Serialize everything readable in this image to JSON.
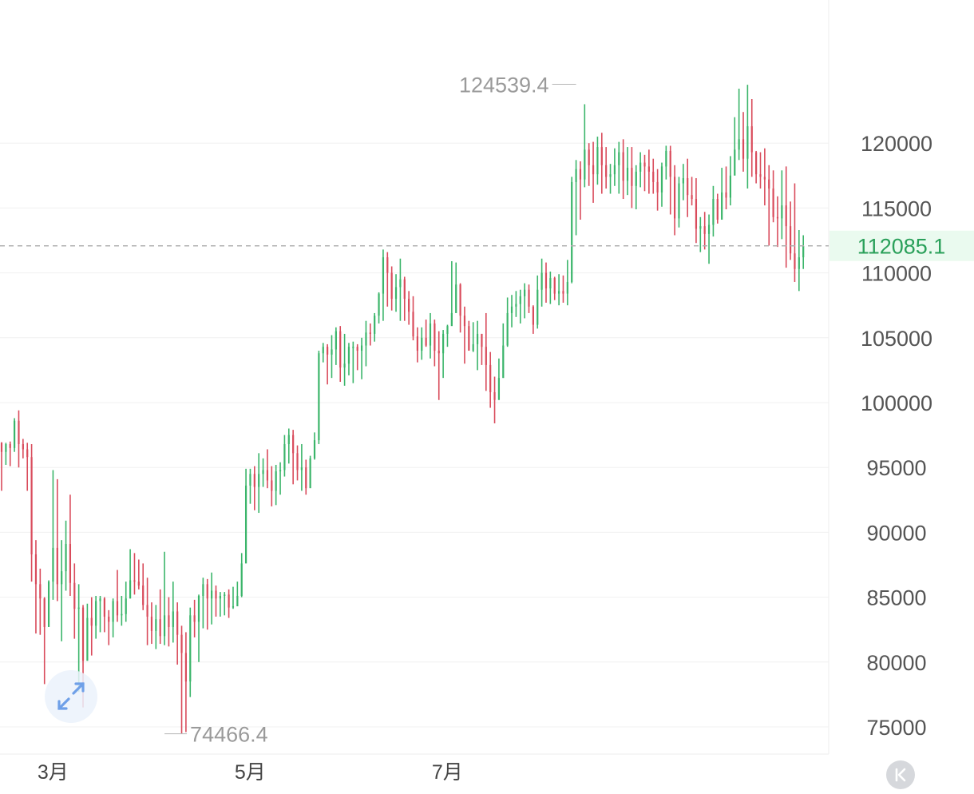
{
  "chart_data": {
    "type": "candlestick",
    "title": "",
    "xlabel": "",
    "ylabel": "",
    "ylim": [
      73000,
      129000
    ],
    "yticks": [
      75000,
      80000,
      85000,
      90000,
      95000,
      100000,
      105000,
      110000,
      115000,
      120000
    ],
    "xticks": [
      {
        "label": "3月",
        "index": 9
      },
      {
        "label": "5月",
        "index": 55
      },
      {
        "label": "7月",
        "index": 101
      }
    ],
    "current_price": {
      "value": 112085.1,
      "label": "112085.1"
    },
    "max_marker": {
      "value": 124539.4,
      "label": "124539.4",
      "index": 134
    },
    "min_marker": {
      "value": 74466.4,
      "label": "74466.4",
      "index": 38
    },
    "colors": {
      "up": "#3bb56a",
      "down": "#d94b5b",
      "grid": "#f0f0f0",
      "price_bg": "#eafaef",
      "price_text": "#2aa05a",
      "dashed": "#b0b0b0"
    },
    "candles": [
      [
        96900,
        96200,
        96950,
        93200
      ],
      [
        96200,
        96800,
        96900,
        95200
      ],
      [
        96800,
        96500,
        97000,
        95100
      ],
      [
        96500,
        98600,
        98800,
        96200
      ],
      [
        98600,
        96800,
        99400,
        95000
      ],
      [
        96800,
        96400,
        97200,
        95700
      ],
      [
        96400,
        95800,
        96900,
        93200
      ],
      [
        95800,
        88300,
        96800,
        86200
      ],
      [
        88300,
        86000,
        89400,
        82200
      ],
      [
        86000,
        84900,
        87200,
        82100
      ],
      [
        84900,
        82700,
        85000,
        78300
      ],
      [
        82700,
        86200,
        86300,
        83600
      ],
      [
        86200,
        88800,
        94800,
        84800
      ],
      [
        88800,
        86000,
        94100,
        84700
      ],
      [
        86000,
        87000,
        89400,
        81600
      ],
      [
        87000,
        89100,
        90900,
        85500
      ],
      [
        89100,
        86100,
        92900,
        85100
      ],
      [
        86100,
        84100,
        87600,
        81800
      ],
      [
        84100,
        84200,
        86000,
        77700
      ],
      [
        84200,
        80100,
        84400,
        76500
      ],
      [
        80100,
        83400,
        84500,
        80100
      ],
      [
        83400,
        82800,
        85000,
        80500
      ],
      [
        82800,
        84700,
        85100,
        81800
      ],
      [
        84700,
        84900,
        85100,
        82300
      ],
      [
        84900,
        83500,
        85000,
        82300
      ],
      [
        83500,
        83100,
        84000,
        81300
      ],
      [
        83100,
        84700,
        84900,
        81900
      ],
      [
        84700,
        83600,
        87100,
        83100
      ],
      [
        83600,
        83700,
        85100,
        82800
      ],
      [
        83700,
        84900,
        86200,
        83100
      ],
      [
        84900,
        86300,
        88700,
        84900
      ],
      [
        86300,
        86200,
        88400,
        85200
      ],
      [
        86200,
        85900,
        87900,
        85600
      ],
      [
        85900,
        84400,
        87600,
        84000
      ],
      [
        84400,
        83500,
        86500,
        81300
      ],
      [
        83500,
        82400,
        84600,
        81400
      ],
      [
        82400,
        83300,
        84400,
        81000
      ],
      [
        83300,
        82000,
        85600,
        81400
      ],
      [
        82000,
        83600,
        88500,
        81300
      ],
      [
        83600,
        82700,
        85000,
        81200
      ],
      [
        82700,
        83900,
        86200,
        81500
      ],
      [
        83900,
        82100,
        84600,
        79800
      ],
      [
        82100,
        80700,
        82800,
        74500
      ],
      [
        80700,
        78500,
        82300,
        74600
      ],
      [
        78500,
        83600,
        84200,
        77300
      ],
      [
        83600,
        83100,
        84800,
        81900
      ],
      [
        83100,
        85100,
        85200,
        80000
      ],
      [
        85100,
        86000,
        86500,
        82600
      ],
      [
        86000,
        84900,
        86400,
        82500
      ],
      [
        84900,
        85500,
        86900,
        82900
      ],
      [
        85500,
        84900,
        85900,
        83500
      ],
      [
        84900,
        85100,
        85400,
        83500
      ],
      [
        85100,
        85200,
        85400,
        83600
      ],
      [
        85200,
        84200,
        85600,
        83400
      ],
      [
        84200,
        84300,
        85800,
        84100
      ],
      [
        84300,
        85100,
        86200,
        84300
      ],
      [
        85100,
        87600,
        88400,
        85000
      ],
      [
        87600,
        93600,
        94900,
        87700
      ],
      [
        93600,
        94500,
        94900,
        92200
      ],
      [
        94500,
        93500,
        95100,
        91700
      ],
      [
        93500,
        94500,
        96100,
        91500
      ],
      [
        94500,
        94800,
        95700,
        93500
      ],
      [
        94800,
        94000,
        96400,
        93400
      ],
      [
        94000,
        93200,
        95100,
        92000
      ],
      [
        93200,
        94700,
        95200,
        92100
      ],
      [
        94700,
        94800,
        95400,
        92900
      ],
      [
        94800,
        96800,
        97500,
        94300
      ],
      [
        96800,
        97500,
        98000,
        95300
      ],
      [
        97500,
        96100,
        97900,
        93700
      ],
      [
        96100,
        94800,
        96700,
        94000
      ],
      [
        94800,
        95000,
        96800,
        93200
      ],
      [
        95000,
        93400,
        95600,
        92900
      ],
      [
        93400,
        95700,
        95900,
        93500
      ],
      [
        95700,
        97100,
        97700,
        95600
      ],
      [
        97100,
        103800,
        104000,
        96800
      ],
      [
        103800,
        104300,
        104600,
        103100
      ],
      [
        104300,
        103700,
        104500,
        101400
      ],
      [
        103700,
        104100,
        105200,
        101900
      ],
      [
        104100,
        105500,
        105800,
        102900
      ],
      [
        105500,
        102700,
        105900,
        101600
      ],
      [
        102700,
        103000,
        105300,
        101300
      ],
      [
        103000,
        104300,
        104600,
        102100
      ],
      [
        104300,
        104300,
        104700,
        101500
      ],
      [
        104300,
        104000,
        104500,
        102500
      ],
      [
        104000,
        104400,
        105000,
        101800
      ],
      [
        104400,
        105400,
        106300,
        102800
      ],
      [
        105400,
        105300,
        106100,
        104400
      ],
      [
        105300,
        106700,
        106900,
        104700
      ],
      [
        106700,
        108400,
        108500,
        106100
      ],
      [
        108400,
        111200,
        111800,
        106300
      ],
      [
        111200,
        110000,
        111600,
        107400
      ],
      [
        110000,
        108000,
        110500,
        107100
      ],
      [
        108000,
        108900,
        109900,
        107000
      ],
      [
        108900,
        109500,
        111100,
        106300
      ],
      [
        109500,
        108000,
        109700,
        106300
      ],
      [
        108000,
        107000,
        108600,
        106000
      ],
      [
        107000,
        105100,
        108200,
        104800
      ],
      [
        105100,
        104000,
        105800,
        103100
      ],
      [
        104000,
        105000,
        105800,
        103300
      ],
      [
        105000,
        104400,
        106400,
        104300
      ],
      [
        104400,
        106100,
        106900,
        103400
      ],
      [
        106100,
        104000,
        106400,
        102800
      ],
      [
        104000,
        103800,
        105500,
        100200
      ],
      [
        103800,
        105300,
        105600,
        101900
      ],
      [
        105300,
        105900,
        106000,
        104300
      ],
      [
        105900,
        106900,
        110900,
        106400
      ],
      [
        106900,
        109100,
        110800,
        107300
      ],
      [
        109100,
        106700,
        109200,
        105400
      ],
      [
        106700,
        105900,
        107400,
        103000
      ],
      [
        105900,
        104000,
        106300,
        104100
      ],
      [
        104000,
        104500,
        106200,
        103900
      ],
      [
        104500,
        105300,
        106300,
        102500
      ],
      [
        105300,
        104300,
        105300,
        102900
      ],
      [
        104300,
        102900,
        106900,
        100900
      ],
      [
        102900,
        100800,
        103900,
        99600
      ],
      [
        100800,
        100200,
        102000,
        98400
      ],
      [
        100200,
        101900,
        103400,
        100600
      ],
      [
        101900,
        104400,
        106100,
        101900
      ],
      [
        104400,
        106900,
        108100,
        104300
      ],
      [
        106900,
        107400,
        108300,
        105800
      ],
      [
        107400,
        107600,
        108600,
        106600
      ],
      [
        107600,
        108200,
        108700,
        106100
      ],
      [
        108200,
        108700,
        109200,
        106500
      ],
      [
        108700,
        107400,
        109100,
        106900
      ],
      [
        107400,
        106000,
        107500,
        105300
      ],
      [
        106000,
        108700,
        109800,
        105700
      ],
      [
        108700,
        110000,
        111100,
        107400
      ],
      [
        110000,
        108800,
        110800,
        107700
      ],
      [
        108800,
        109600,
        110100,
        107600
      ],
      [
        109600,
        108400,
        109700,
        107900
      ],
      [
        108400,
        108600,
        109900,
        107500
      ],
      [
        108600,
        108400,
        109800,
        107700
      ],
      [
        108400,
        109300,
        111000,
        107500
      ],
      [
        109300,
        117000,
        117400,
        109200
      ],
      [
        117000,
        118000,
        118700,
        112900
      ],
      [
        118000,
        117200,
        118600,
        114100
      ],
      [
        117200,
        119500,
        123000,
        116600
      ],
      [
        119500,
        118300,
        120000,
        116700
      ],
      [
        118300,
        117600,
        120100,
        115400
      ],
      [
        117600,
        119700,
        120500,
        116800
      ],
      [
        119700,
        118300,
        120800,
        116100
      ],
      [
        118300,
        117400,
        119700,
        116500
      ],
      [
        117400,
        117600,
        118400,
        116100
      ],
      [
        117600,
        118300,
        119600,
        116700
      ],
      [
        118300,
        119300,
        120100,
        116100
      ],
      [
        119300,
        117100,
        120300,
        115700
      ],
      [
        117100,
        118100,
        119700,
        116000
      ],
      [
        118100,
        116700,
        119700,
        115000
      ],
      [
        116700,
        117800,
        118300,
        114900
      ],
      [
        117800,
        118500,
        119300,
        116600
      ],
      [
        118500,
        118200,
        119100,
        116300
      ],
      [
        118200,
        117800,
        119500,
        116100
      ],
      [
        117800,
        117000,
        118800,
        116100
      ],
      [
        117000,
        116200,
        118000,
        114800
      ],
      [
        116200,
        118200,
        118500,
        115100
      ],
      [
        118200,
        119400,
        119800,
        117200
      ],
      [
        119400,
        117400,
        119800,
        114500
      ],
      [
        117400,
        114200,
        118300,
        112900
      ],
      [
        114200,
        116900,
        117400,
        113500
      ],
      [
        116900,
        117300,
        118400,
        115600
      ],
      [
        117300,
        116000,
        118800,
        114300
      ],
      [
        116000,
        115700,
        117400,
        115200
      ],
      [
        115700,
        113400,
        117300,
        112300
      ],
      [
        113400,
        113600,
        114300,
        111600
      ],
      [
        113600,
        113000,
        114700,
        111800
      ],
      [
        113000,
        113700,
        114500,
        110700
      ],
      [
        113700,
        115700,
        116700,
        112800
      ],
      [
        115700,
        114100,
        116100,
        113800
      ],
      [
        114100,
        116200,
        118100,
        114900
      ],
      [
        116200,
        115800,
        118200,
        114900
      ],
      [
        115800,
        117500,
        119000,
        115200
      ],
      [
        117500,
        119500,
        122000,
        118600
      ],
      [
        119500,
        120300,
        124200,
        118700
      ],
      [
        120300,
        118800,
        122400,
        117800
      ],
      [
        118800,
        121300,
        124500,
        116500
      ],
      [
        121300,
        119300,
        123400,
        117400
      ],
      [
        119300,
        117600,
        119400,
        116900
      ],
      [
        117600,
        117400,
        119300,
        116500
      ],
      [
        117400,
        117200,
        119600,
        115200
      ],
      [
        117200,
        116500,
        118300,
        112100
      ],
      [
        116500,
        114300,
        117900,
        113900
      ],
      [
        114300,
        114200,
        115900,
        112000
      ],
      [
        114200,
        115200,
        117900,
        112600
      ],
      [
        115200,
        113600,
        118200,
        110400
      ],
      [
        113600,
        111500,
        115500,
        111000
      ],
      [
        111500,
        110300,
        116900,
        109300
      ],
      [
        110300,
        111200,
        113300,
        108600
      ],
      [
        111200,
        112085,
        112900,
        110300
      ]
    ]
  }
}
